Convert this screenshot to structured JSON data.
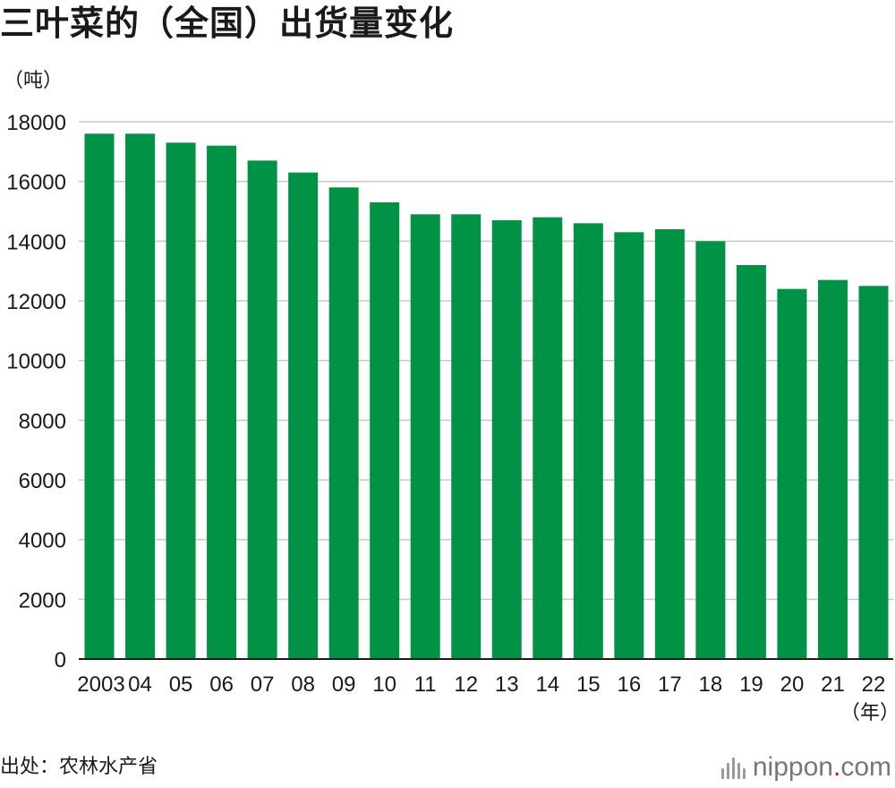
{
  "title": "三叶菜的（全国）出货量变化",
  "unit_label": "（吨）",
  "source": "出处：农林水产省",
  "logo": {
    "text_main": "nippon",
    "text_dot": ".",
    "text_tail": "com",
    "icon": "nippon-bars-icon",
    "dot_color": "#e60012"
  },
  "colors": {
    "bar": "#009245",
    "grid": "#c8c8c8",
    "axis": "#1a1a1a"
  },
  "chart_data": {
    "type": "bar",
    "title": "三叶菜的（全国）出货量变化",
    "ylabel": "（吨）",
    "xlabel": "（年）",
    "categories": [
      "2003",
      "04",
      "05",
      "06",
      "07",
      "08",
      "09",
      "10",
      "11",
      "12",
      "13",
      "14",
      "15",
      "16",
      "17",
      "18",
      "19",
      "20",
      "21",
      "22"
    ],
    "values": [
      17600,
      17600,
      17300,
      17200,
      16700,
      16300,
      15800,
      15300,
      14900,
      14900,
      14700,
      14800,
      14600,
      14300,
      14400,
      14000,
      13200,
      12400,
      12700,
      12500
    ],
    "ylim": [
      0,
      18000
    ],
    "yticks": [
      0,
      2000,
      4000,
      6000,
      8000,
      10000,
      12000,
      14000,
      16000,
      18000
    ],
    "grid": true
  }
}
